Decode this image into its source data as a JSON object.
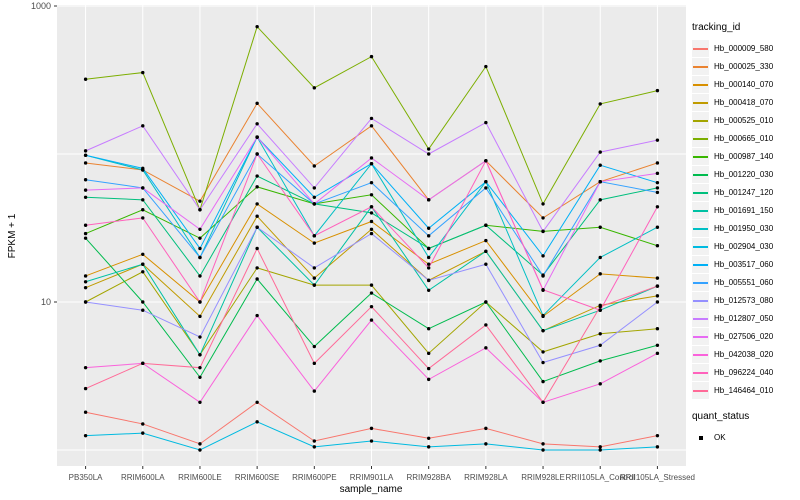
{
  "figure": {
    "background": "#FFFFFF",
    "panel_background": "#EBEBEB",
    "gridline_color": "#FFFFFF",
    "point_color": "#000000",
    "tick_label_color": "#4D4D4D"
  },
  "axes": {
    "x_title": "sample_name",
    "y_title": "FPKM + 1",
    "y_tick_labels": [
      "1000",
      "10"
    ],
    "y_tick_values": [
      1000,
      10
    ]
  },
  "legend": {
    "tracking_title": "tracking_id",
    "quant_title": "quant_status",
    "quant_items": [
      {
        "label": "OK",
        "marker": "black-square-point"
      }
    ]
  },
  "chart_data": {
    "type": "line",
    "title": "",
    "xlabel": "sample_name",
    "ylabel": "FPKM + 1",
    "y_scale": "log10",
    "ylim": [
      1,
      1000
    ],
    "y_gridlines": [
      1,
      10,
      100,
      1000
    ],
    "grid": true,
    "legend_position": "right",
    "marker": "black point on every value (quant_status = OK)",
    "categories": [
      "PB350LA",
      "RRIM600LA",
      "RRIM600LE",
      "RRIM600SE",
      "RRIM600PE",
      "RRIM901LA",
      "RRIM928BA",
      "RRIM928LA",
      "RRIM928LE",
      "RRII105LA_Control",
      "RRII105LA_Stressed"
    ],
    "series": [
      {
        "name": "Hb_000009_580",
        "color": "#F8766D",
        "values": [
          1.8,
          1.5,
          1.1,
          2.1,
          1.15,
          1.4,
          1.2,
          1.4,
          1.1,
          1.05,
          1.25
        ]
      },
      {
        "name": "Hb_000025_330",
        "color": "#EA8331",
        "values": [
          87,
          78,
          48,
          220,
          83,
          155,
          49,
          90,
          37,
          65,
          87
        ]
      },
      {
        "name": "Hb_000140_070",
        "color": "#D89000",
        "values": [
          15,
          21,
          10,
          46,
          25,
          35,
          18,
          26,
          8,
          15.5,
          14.5
        ]
      },
      {
        "name": "Hb_000418_070",
        "color": "#C09B00",
        "values": [
          12.5,
          18,
          8,
          38,
          14.5,
          31,
          14,
          22,
          6.4,
          9.5,
          11
        ]
      },
      {
        "name": "Hb_000525_010",
        "color": "#A3A500",
        "values": [
          10,
          16,
          4.4,
          17,
          13,
          13,
          4.5,
          10,
          4.6,
          6.1,
          6.6
        ]
      },
      {
        "name": "Hb_000665_010",
        "color": "#7CAE00",
        "values": [
          320,
          355,
          42,
          725,
          280,
          455,
          108,
          390,
          46,
          218,
          268
        ]
      },
      {
        "name": "Hb_000987_140",
        "color": "#39B600",
        "values": [
          29,
          42,
          27,
          60,
          46,
          53,
          23,
          33,
          30,
          32,
          24
        ]
      },
      {
        "name": "Hb_001220_030",
        "color": "#00BB4E",
        "values": [
          27,
          10,
          3.1,
          14.3,
          5.0,
          11.5,
          6.6,
          10,
          2.9,
          4.0,
          5.1
        ]
      },
      {
        "name": "Hb_001247_120",
        "color": "#00BF7D",
        "values": [
          51,
          49,
          15,
          71,
          46,
          40,
          23,
          33,
          15.2,
          49,
          59
        ]
      },
      {
        "name": "Hb_001691_150",
        "color": "#00C1A3",
        "values": [
          13.7,
          18,
          4.4,
          32,
          13,
          44,
          12,
          22,
          6.4,
          8.8,
          12.8
        ]
      },
      {
        "name": "Hb_001950_030",
        "color": "#00BFC4",
        "values": [
          98,
          78,
          20,
          130,
          28,
          86,
          20,
          65,
          8.1,
          20,
          32
        ]
      },
      {
        "name": "Hb_002904_030",
        "color": "#00BAE0",
        "values": [
          1.25,
          1.3,
          1.0,
          1.55,
          1.05,
          1.15,
          1.05,
          1.1,
          1.0,
          1.0,
          1.05
        ]
      },
      {
        "name": "Hb_003517_060",
        "color": "#00B0F6",
        "values": [
          98,
          80,
          23,
          130,
          51,
          86,
          31.5,
          65,
          20.5,
          84,
          64
        ]
      },
      {
        "name": "Hb_005551_060",
        "color": "#35A2FF",
        "values": [
          67,
          59,
          20,
          100,
          46,
          64,
          28,
          59,
          15,
          65,
          55
        ]
      },
      {
        "name": "Hb_012573_080",
        "color": "#9590FF",
        "values": [
          10,
          8.8,
          5.8,
          32,
          17,
          29,
          14,
          18,
          3.9,
          5.1,
          10
        ]
      },
      {
        "name": "Hb_012807_050",
        "color": "#C77CFF",
        "values": [
          105,
          155,
          42,
          160,
          59,
          174,
          100,
          163,
          30,
          103,
          124
        ]
      },
      {
        "name": "Hb_027506_020",
        "color": "#E76BF3",
        "values": [
          57,
          59,
          31,
          130,
          46,
          94,
          49,
          90,
          12,
          65,
          74
        ]
      },
      {
        "name": "Hb_042038_020",
        "color": "#FA62DB",
        "values": [
          3.6,
          3.85,
          2.1,
          8.1,
          2.5,
          7.55,
          3.0,
          4.9,
          2.1,
          2.8,
          4.5
        ]
      },
      {
        "name": "Hb_096224_040",
        "color": "#FF62BC",
        "values": [
          33,
          37,
          10,
          100,
          28,
          44,
          17,
          90,
          12.1,
          8.8,
          44
        ]
      },
      {
        "name": "Hb_146464_010",
        "color": "#FF6A98",
        "values": [
          2.6,
          3.85,
          3.6,
          23,
          3.85,
          9.3,
          3.55,
          7.0,
          2.1,
          9.3,
          12.8
        ]
      }
    ]
  }
}
